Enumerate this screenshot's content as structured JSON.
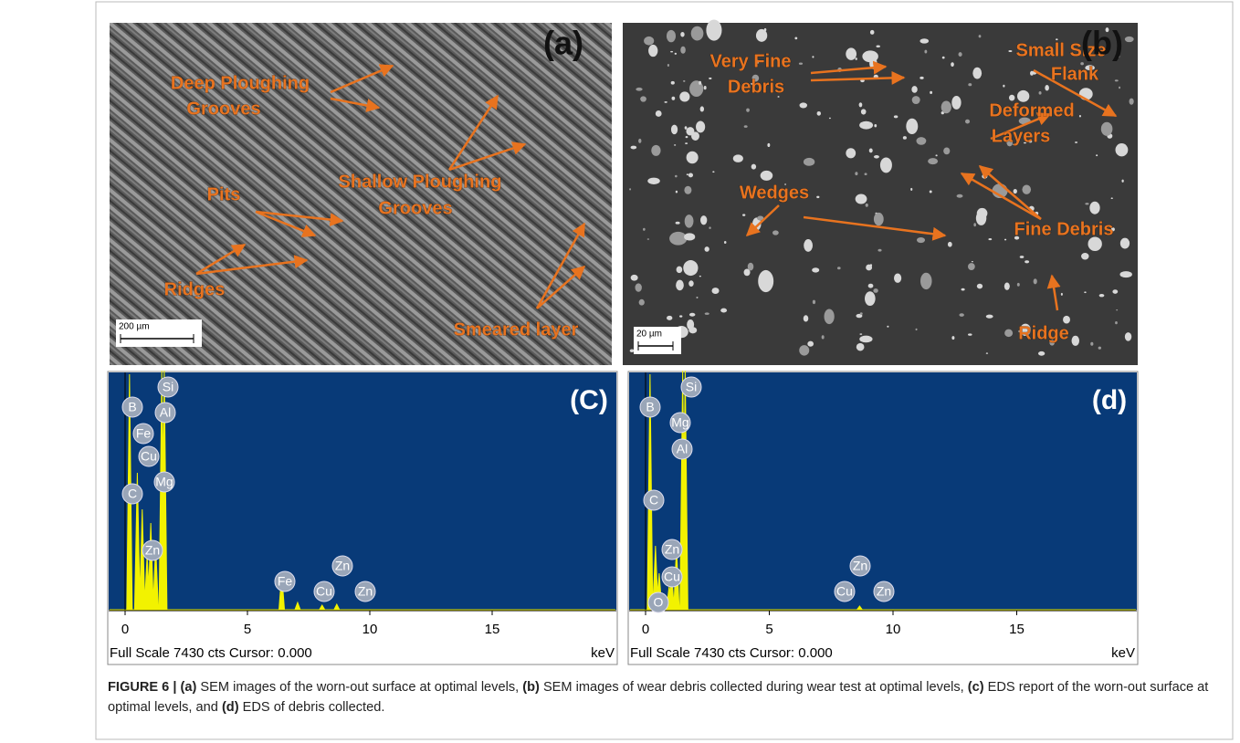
{
  "panels": [
    {
      "label": "(a)",
      "scale_bar": "200 µm",
      "annotations": [
        [
          "Deep Ploughing",
          "Grooves"
        ],
        [
          "Shallow Ploughing",
          "Grooves"
        ],
        [
          "Pits"
        ],
        [
          "Ridges"
        ],
        [
          "Smeared layer"
        ]
      ]
    },
    {
      "label": "(b)",
      "scale_bar": "20 µm",
      "annotations": [
        [
          "Very Fine",
          "Debris"
        ],
        [
          "Small Size",
          "Flank"
        ],
        [
          "Deformed",
          "Layers"
        ],
        [
          "Wedges"
        ],
        [
          "Fine Debris"
        ],
        [
          "Ridge"
        ]
      ]
    },
    {
      "label": "(C)",
      "elements": [
        "B",
        "Si",
        "Al",
        "Fe",
        "Cu",
        "Mg",
        "C",
        "Zn",
        "Fe",
        "Zn",
        "Cu",
        "Zn"
      ],
      "xticks": [
        0,
        5,
        10,
        15
      ],
      "footer": "Full Scale 7430 cts Cursor: 0.000",
      "unit": "keV"
    },
    {
      "label": "(d)",
      "elements": [
        "B",
        "Si",
        "Mg",
        "Al",
        "C",
        "Zn",
        "Cu",
        "O",
        "Zn",
        "Cu",
        "Zn"
      ],
      "xticks": [
        0,
        5,
        10,
        15
      ],
      "footer": "Full Scale 7430 cts Cursor: 0.000",
      "unit": "keV"
    }
  ],
  "caption": [
    "FIGURE 6 | (a)",
    " SEM images of the worn-out surface at optimal levels, ",
    "(b)",
    " SEM images of wear debris collected during wear test at optimal levels, ",
    "(c)",
    " EDS report of the worn-out surface at optimal levels, and ",
    "(d)",
    " EDS of debris collected."
  ]
}
